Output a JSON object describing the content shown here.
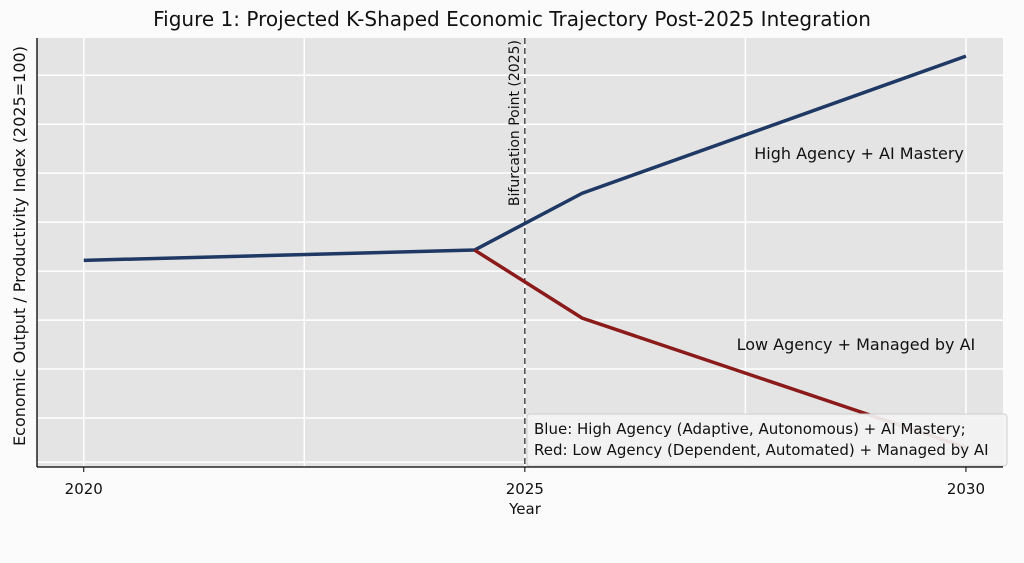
{
  "chart_data": {
    "type": "line",
    "title": "Figure 1: Projected K-Shaped Economic Trajectory Post-2025 Integration",
    "xlabel": "Year",
    "ylabel": "Economic Output / Productivity Index (2025=100)",
    "xlim": [
      2019.47,
      2030.42
    ],
    "ylim": [
      50,
      137.6
    ],
    "x_ticks": [
      2020,
      2025,
      2030
    ],
    "x_tick_labels": [
      "2020",
      "2025",
      "2030"
    ],
    "x_grid": [
      2020,
      2022.5,
      2025,
      2027.5,
      2030
    ],
    "y_grid": [
      51,
      60,
      70,
      80,
      90,
      100,
      110,
      120,
      130
    ],
    "grid": true,
    "series": [
      {
        "color": "#1f3864",
        "x": [
          2020,
          2024.43,
          2025.65,
          2030
        ],
        "y": [
          92.2,
          94.3,
          105.9,
          133.9
        ]
      },
      {
        "color": "#8b1a1a",
        "x": [
          2024.43,
          2025.65,
          2030
        ],
        "y": [
          94.3,
          80.4,
          54.0
        ]
      }
    ],
    "vline": {
      "x": 2025,
      "label": "Bifurcation Point (2025)",
      "style": "dashed"
    },
    "annotations": [
      {
        "text": "High Agency + AI Mastery",
        "x": 2027.6,
        "y": 112.9
      },
      {
        "text": "Low Agency + Managed by AI",
        "x": 2027.4,
        "y": 73.9
      }
    ],
    "legend": {
      "placement": "bottom-right",
      "lines": [
        "Blue: High Agency (Adaptive, Autonomous) + AI Mastery;",
        "Red: Low Agency (Dependent, Automated) + Managed by AI"
      ]
    }
  }
}
